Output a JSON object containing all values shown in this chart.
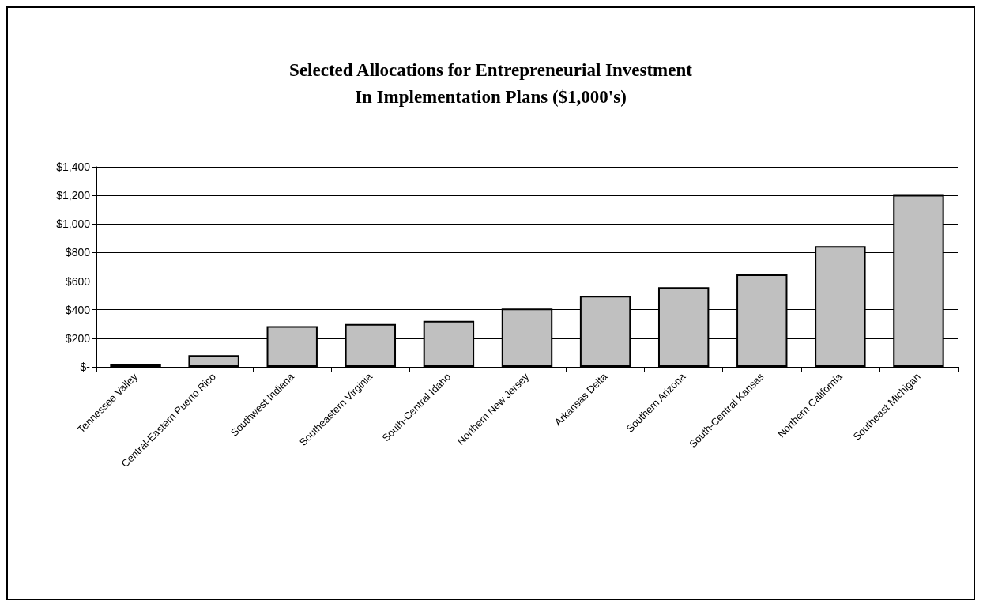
{
  "chart_data": {
    "type": "bar",
    "title": "Selected Allocations for Entrepreneurial Investment\nIn Implementation Plans ($1,000's)",
    "categories": [
      "Tennessee Valley",
      "Central-Eastern Puerto Rico",
      "Southwest Indiana",
      "Southeastern Virginia",
      "South-Central Idaho",
      "Northern New Jersey",
      "Arkansas Delta",
      "Southern Arizona",
      "South-Central Kansas",
      "Northern California",
      "Southeast Michigan"
    ],
    "values": [
      20,
      82,
      285,
      300,
      322,
      408,
      497,
      557,
      647,
      845,
      1204
    ],
    "color": "#c0c0c0",
    "ylim": [
      0,
      1400
    ],
    "yticks": [
      {
        "value": 0,
        "label": "$-"
      },
      {
        "value": 200,
        "label": "$200"
      },
      {
        "value": 400,
        "label": "$400"
      },
      {
        "value": 600,
        "label": "$600"
      },
      {
        "value": 800,
        "label": "$800"
      },
      {
        "value": 1000,
        "label": "$1,000"
      },
      {
        "value": 1200,
        "label": "$1,200"
      },
      {
        "value": 1400,
        "label": "$1,400"
      }
    ],
    "grid": "y"
  }
}
